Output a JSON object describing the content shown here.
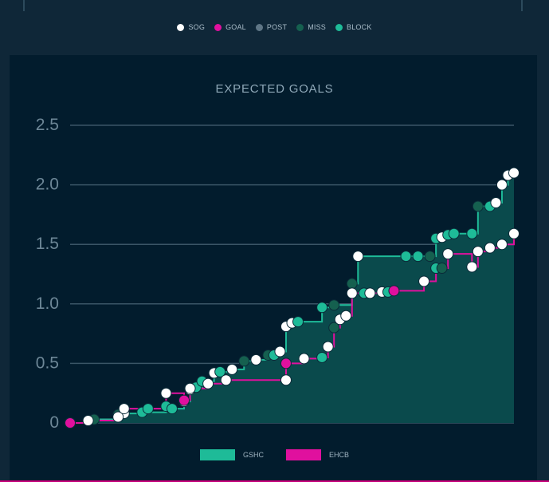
{
  "legend_top": [
    {
      "label": "SOG",
      "color": "#ffffff"
    },
    {
      "label": "GOAL",
      "color": "#e0109e"
    },
    {
      "label": "POST",
      "color": "#5f7686"
    },
    {
      "label": "MISS",
      "color": "#15604f"
    },
    {
      "label": "BLOCK",
      "color": "#1ebb98"
    }
  ],
  "chart_data": {
    "type": "area",
    "title": "EXPECTED GOALS",
    "xlabel": "",
    "ylabel": "",
    "ylim": [
      0,
      2.5
    ],
    "yticks": [
      "0",
      "0.5",
      "1.0",
      "1.5",
      "2.0",
      "2.5"
    ],
    "grid": true,
    "legend_position": "bottom",
    "series": [
      {
        "name": "GSHC",
        "color": "#1ebb98",
        "fill": "#0a4a4c",
        "points": [
          {
            "x": 0,
            "y": 0.0,
            "t": "BLOCK"
          },
          {
            "x": 4,
            "y": 0.03,
            "t": "MISS"
          },
          {
            "x": 8,
            "y": 0.07,
            "t": "MISS"
          },
          {
            "x": 9,
            "y": 0.08,
            "t": "SOG"
          },
          {
            "x": 12,
            "y": 0.09,
            "t": "BLOCK"
          },
          {
            "x": 16,
            "y": 0.14,
            "t": "BLOCK"
          },
          {
            "x": 17,
            "y": 0.12,
            "t": "BLOCK"
          },
          {
            "x": 19,
            "y": 0.18,
            "t": "SOG"
          },
          {
            "x": 20,
            "y": 0.28,
            "t": "SOG"
          },
          {
            "x": 21,
            "y": 0.3,
            "t": "BLOCK"
          },
          {
            "x": 22,
            "y": 0.35,
            "t": "BLOCK"
          },
          {
            "x": 24,
            "y": 0.42,
            "t": "SOG"
          },
          {
            "x": 25,
            "y": 0.43,
            "t": "BLOCK"
          },
          {
            "x": 27,
            "y": 0.45,
            "t": "SOG"
          },
          {
            "x": 29,
            "y": 0.52,
            "t": "MISS"
          },
          {
            "x": 31,
            "y": 0.53,
            "t": "SOG"
          },
          {
            "x": 33,
            "y": 0.57,
            "t": "MISS"
          },
          {
            "x": 34,
            "y": 0.57,
            "t": "BLOCK"
          },
          {
            "x": 35,
            "y": 0.6,
            "t": "SOG"
          },
          {
            "x": 36,
            "y": 0.81,
            "t": "SOG"
          },
          {
            "x": 37,
            "y": 0.84,
            "t": "SOG"
          },
          {
            "x": 38,
            "y": 0.85,
            "t": "BLOCK"
          },
          {
            "x": 42,
            "y": 0.97,
            "t": "BLOCK"
          },
          {
            "x": 44,
            "y": 0.99,
            "t": "MISS"
          },
          {
            "x": 47,
            "y": 1.17,
            "t": "MISS"
          },
          {
            "x": 48,
            "y": 1.4,
            "t": "SOG"
          },
          {
            "x": 56,
            "y": 1.4,
            "t": "BLOCK"
          },
          {
            "x": 58,
            "y": 1.4,
            "t": "BLOCK"
          },
          {
            "x": 60,
            "y": 1.4,
            "t": "MISS"
          },
          {
            "x": 61,
            "y": 1.55,
            "t": "BLOCK"
          },
          {
            "x": 62,
            "y": 1.56,
            "t": "SOG"
          },
          {
            "x": 63,
            "y": 1.58,
            "t": "BLOCK"
          },
          {
            "x": 64,
            "y": 1.59,
            "t": "BLOCK"
          },
          {
            "x": 67,
            "y": 1.59,
            "t": "BLOCK"
          },
          {
            "x": 68,
            "y": 1.82,
            "t": "MISS"
          },
          {
            "x": 70,
            "y": 1.82,
            "t": "BLOCK"
          },
          {
            "x": 71,
            "y": 1.85,
            "t": "SOG"
          },
          {
            "x": 72,
            "y": 2.0,
            "t": "SOG"
          },
          {
            "x": 73,
            "y": 2.08,
            "t": "SOG"
          },
          {
            "x": 74,
            "y": 2.1,
            "t": "SOG"
          }
        ]
      },
      {
        "name": "EHCB",
        "color": "#e0109e",
        "points": [
          {
            "x": 0,
            "y": 0.0,
            "t": "GOAL"
          },
          {
            "x": 3,
            "y": 0.02,
            "t": "SOG"
          },
          {
            "x": 8,
            "y": 0.05,
            "t": "SOG"
          },
          {
            "x": 9,
            "y": 0.12,
            "t": "SOG"
          },
          {
            "x": 13,
            "y": 0.12,
            "t": "BLOCK"
          },
          {
            "x": 16,
            "y": 0.25,
            "t": "SOG"
          },
          {
            "x": 19,
            "y": 0.19,
            "t": "GOAL"
          },
          {
            "x": 20,
            "y": 0.29,
            "t": "SOG"
          },
          {
            "x": 23,
            "y": 0.33,
            "t": "SOG"
          },
          {
            "x": 26,
            "y": 0.36,
            "t": "SOG"
          },
          {
            "x": 36,
            "y": 0.36,
            "t": "SOG"
          },
          {
            "x": 36,
            "y": 0.5,
            "t": "GOAL"
          },
          {
            "x": 39,
            "y": 0.54,
            "t": "SOG"
          },
          {
            "x": 42,
            "y": 0.55,
            "t": "BLOCK"
          },
          {
            "x": 43,
            "y": 0.64,
            "t": "SOG"
          },
          {
            "x": 44,
            "y": 0.8,
            "t": "MISS"
          },
          {
            "x": 45,
            "y": 0.87,
            "t": "SOG"
          },
          {
            "x": 46,
            "y": 0.9,
            "t": "SOG"
          },
          {
            "x": 47,
            "y": 1.09,
            "t": "SOG"
          },
          {
            "x": 49,
            "y": 1.09,
            "t": "BLOCK"
          },
          {
            "x": 50,
            "y": 1.09,
            "t": "SOG"
          },
          {
            "x": 52,
            "y": 1.1,
            "t": "SOG"
          },
          {
            "x": 53,
            "y": 1.1,
            "t": "BLOCK"
          },
          {
            "x": 54,
            "y": 1.11,
            "t": "GOAL"
          },
          {
            "x": 59,
            "y": 1.19,
            "t": "SOG"
          },
          {
            "x": 61,
            "y": 1.3,
            "t": "BLOCK"
          },
          {
            "x": 62,
            "y": 1.3,
            "t": "MISS"
          },
          {
            "x": 63,
            "y": 1.42,
            "t": "SOG"
          },
          {
            "x": 67,
            "y": 1.31,
            "t": "SOG"
          },
          {
            "x": 68,
            "y": 1.44,
            "t": "SOG"
          },
          {
            "x": 70,
            "y": 1.47,
            "t": "SOG"
          },
          {
            "x": 72,
            "y": 1.5,
            "t": "SOG"
          },
          {
            "x": 74,
            "y": 1.59,
            "t": "SOG"
          }
        ]
      }
    ],
    "xlim": [
      0,
      74
    ]
  },
  "legend_bottom": [
    {
      "label": "GSHC",
      "color": "#1ebb98"
    },
    {
      "label": "EHCB",
      "color": "#e0109e"
    }
  ]
}
